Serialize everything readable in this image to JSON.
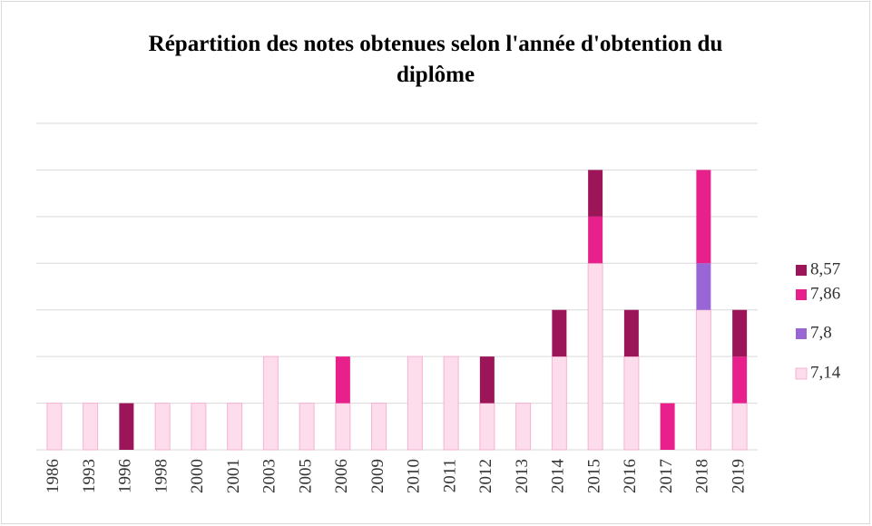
{
  "chart_data": {
    "type": "stacked_bar",
    "title": "Répartition des notes obtenues selon l'année d'obtention du diplôme",
    "categories": [
      "1986",
      "1993",
      "1996",
      "1998",
      "2000",
      "2001",
      "2003",
      "2005",
      "2006",
      "2009",
      "2010",
      "2011",
      "2012",
      "2013",
      "2014",
      "2015",
      "2016",
      "2017",
      "2018",
      "2019"
    ],
    "series": [
      {
        "name": "7,14",
        "color": "#fddcec",
        "values": [
          1,
          1,
          0,
          1,
          1,
          1,
          2,
          1,
          1,
          1,
          2,
          2,
          1,
          1,
          2,
          4,
          2,
          0,
          3,
          1
        ]
      },
      {
        "name": "7,8",
        "color": "#9966d6",
        "values": [
          0,
          0,
          0,
          0,
          0,
          0,
          0,
          0,
          0,
          0,
          0,
          0,
          0,
          0,
          0,
          0,
          0,
          0,
          1,
          0
        ]
      },
      {
        "name": "7,86",
        "color": "#e8208c",
        "values": [
          0,
          0,
          0,
          0,
          0,
          0,
          0,
          0,
          1,
          0,
          0,
          0,
          0,
          0,
          0,
          1,
          0,
          1,
          2,
          1
        ]
      },
      {
        "name": "8,57",
        "color": "#9b1558",
        "values": [
          0,
          0,
          1,
          0,
          0,
          0,
          0,
          0,
          0,
          0,
          0,
          0,
          1,
          0,
          1,
          1,
          1,
          0,
          0,
          1
        ]
      }
    ],
    "ylim": [
      0,
      7
    ],
    "yticks": [
      0,
      1,
      2,
      3,
      4,
      5,
      6,
      7
    ],
    "grid": true,
    "legend": "right"
  }
}
